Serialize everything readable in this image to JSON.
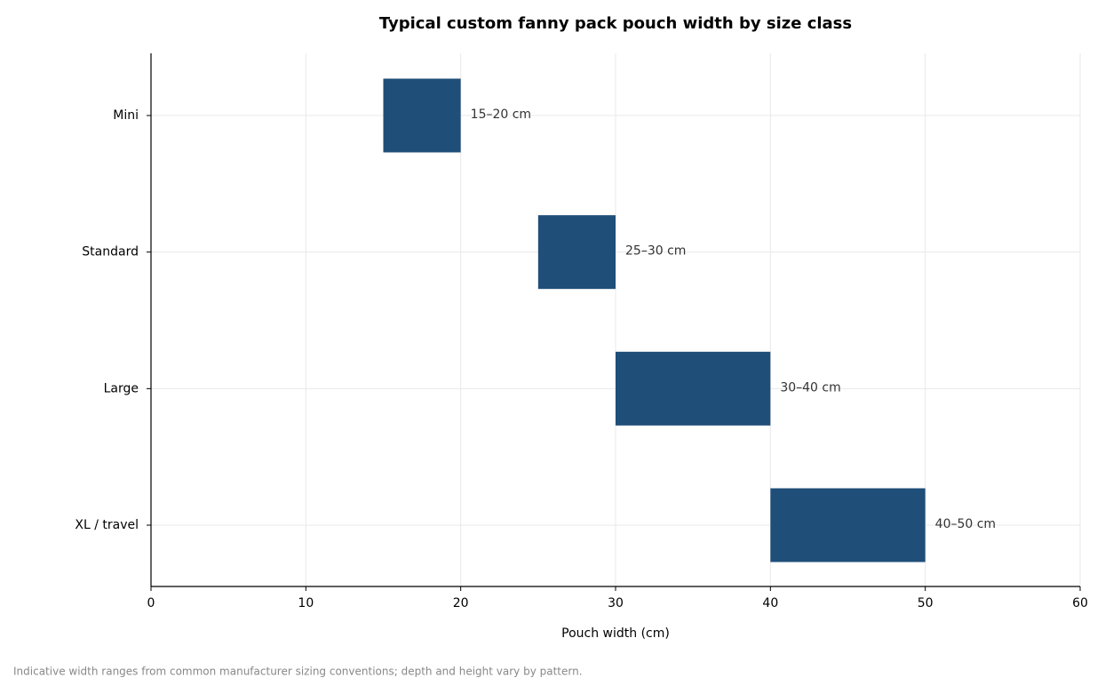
{
  "chart_data": {
    "type": "range_bar",
    "title": "Typical custom fanny pack pouch width by size class",
    "x_label": "Pouch width (cm)",
    "footnote": "Indicative width ranges from common manufacturer sizing conventions; depth and height vary by pattern.",
    "categories": [
      "Mini",
      "Standard",
      "Large",
      "XL / travel"
    ],
    "starts": [
      15,
      25,
      30,
      40
    ],
    "ends": [
      20,
      30,
      40,
      50
    ],
    "value_labels": [
      "15–20 cm",
      "25–30 cm",
      "30–40 cm",
      "40–50 cm"
    ],
    "color": "#1f4e79",
    "xlim": [
      0,
      60
    ],
    "xticks": [
      0,
      10,
      20,
      30,
      40,
      50,
      60
    ],
    "grid": true
  }
}
